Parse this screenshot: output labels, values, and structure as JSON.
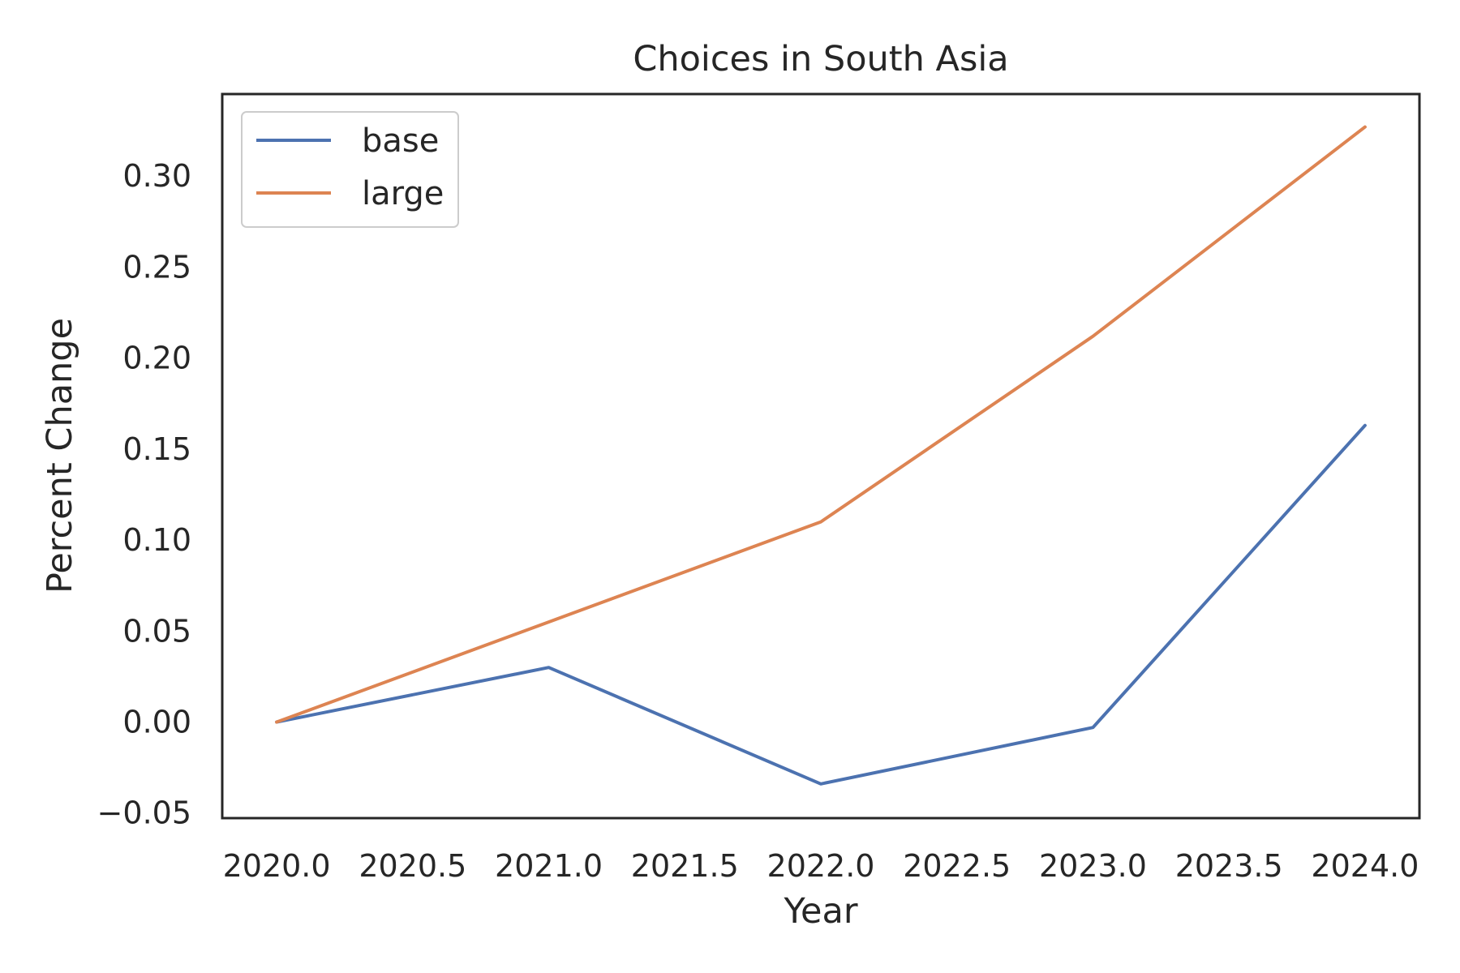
{
  "chart_data": {
    "type": "line",
    "title": "Choices in South Asia",
    "xlabel": "Year",
    "ylabel": "Percent Change",
    "x": [
      2020,
      2021,
      2022,
      2023,
      2024
    ],
    "series": [
      {
        "name": "base",
        "color": "#4c72b0",
        "values": [
          0.0,
          0.03,
          -0.034,
          -0.003,
          0.163
        ]
      },
      {
        "name": "large",
        "color": "#dd8452",
        "values": [
          0.0,
          0.055,
          0.11,
          0.212,
          0.327
        ]
      }
    ],
    "xlim": [
      2019.8,
      2024.2
    ],
    "ylim": [
      -0.0528,
      0.3451
    ],
    "xticks": [
      2020.0,
      2020.5,
      2021.0,
      2021.5,
      2022.0,
      2022.5,
      2023.0,
      2023.5,
      2024.0
    ],
    "xtick_labels": [
      "2020.0",
      "2020.5",
      "2021.0",
      "2021.5",
      "2022.0",
      "2022.5",
      "2023.0",
      "2023.5",
      "2024.0"
    ],
    "yticks": [
      -0.05,
      0.0,
      0.05,
      0.1,
      0.15,
      0.2,
      0.25,
      0.3
    ],
    "ytick_labels": [
      "−0.05",
      "0.00",
      "0.05",
      "0.10",
      "0.15",
      "0.20",
      "0.25",
      "0.30"
    ],
    "grid": false,
    "legend_position": "upper left"
  }
}
